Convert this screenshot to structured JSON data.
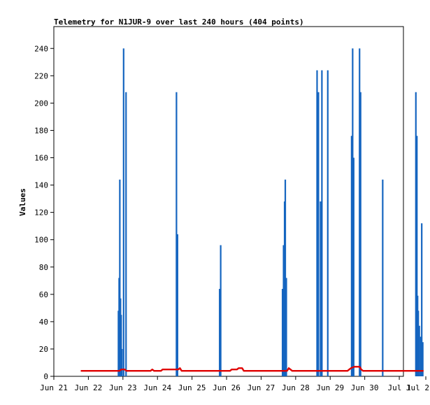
{
  "chart_data": {
    "type": "line",
    "title": "Telemetry for N1JUR-9 over last 240 hours (404 points)",
    "xlabel": "",
    "ylabel": "Values",
    "x_axis": {
      "min_day": 21,
      "max_day": 31.12,
      "ticks": [
        {
          "day": 21,
          "label": "Jun 21"
        },
        {
          "day": 22,
          "label": "Jun 22"
        },
        {
          "day": 23,
          "label": "Jun 23"
        },
        {
          "day": 24,
          "label": "Jun 24"
        },
        {
          "day": 25,
          "label": "Jun 25"
        },
        {
          "day": 26,
          "label": "Jun 26"
        },
        {
          "day": 27,
          "label": "Jun 27"
        },
        {
          "day": 28,
          "label": "Jun 28"
        },
        {
          "day": 29,
          "label": "Jun 29"
        },
        {
          "day": 30,
          "label": "Jun 30"
        },
        {
          "day": 31,
          "label": "Jul 1"
        },
        {
          "day": 32,
          "label": "Jul 2"
        }
      ]
    },
    "ylim": [
      0,
      256
    ],
    "yticks": [
      0,
      20,
      40,
      60,
      80,
      100,
      120,
      140,
      160,
      180,
      200,
      220,
      240
    ],
    "grid": false,
    "legend": "none",
    "series": [
      {
        "color": "#1565c0",
        "style": "spikes",
        "points": [
          [
            22.87,
            48
          ],
          [
            22.89,
            72
          ],
          [
            22.91,
            144
          ],
          [
            22.93,
            57
          ],
          [
            22.95,
            45
          ],
          [
            22.97,
            20
          ],
          [
            23.02,
            240
          ],
          [
            23.09,
            208
          ],
          [
            24.55,
            208
          ],
          [
            24.58,
            104
          ],
          [
            25.8,
            64
          ],
          [
            25.83,
            96
          ],
          [
            27.62,
            64
          ],
          [
            27.65,
            96
          ],
          [
            27.68,
            128
          ],
          [
            27.7,
            144
          ],
          [
            27.73,
            72
          ],
          [
            28.62,
            224
          ],
          [
            28.66,
            208
          ],
          [
            28.72,
            128
          ],
          [
            28.76,
            224
          ],
          [
            28.93,
            224
          ],
          [
            29.62,
            176
          ],
          [
            29.65,
            240
          ],
          [
            29.68,
            160
          ],
          [
            29.85,
            240
          ],
          [
            29.88,
            208
          ],
          [
            30.52,
            144
          ],
          [
            31.48,
            208
          ],
          [
            31.51,
            176
          ],
          [
            31.53,
            59
          ],
          [
            31.55,
            48
          ],
          [
            31.58,
            37
          ],
          [
            31.62,
            29
          ],
          [
            31.65,
            112
          ],
          [
            31.68,
            25
          ]
        ]
      },
      {
        "color": "#e00000",
        "style": "line",
        "points": [
          [
            21.78,
            4
          ],
          [
            22.9,
            4
          ],
          [
            22.95,
            5
          ],
          [
            23.05,
            5
          ],
          [
            23.1,
            4
          ],
          [
            23.8,
            4
          ],
          [
            23.85,
            5
          ],
          [
            23.9,
            4
          ],
          [
            24.1,
            4
          ],
          [
            24.15,
            5
          ],
          [
            24.4,
            5
          ],
          [
            24.45,
            5
          ],
          [
            24.6,
            5
          ],
          [
            24.65,
            6
          ],
          [
            24.7,
            4
          ],
          [
            25.85,
            4
          ],
          [
            25.9,
            4
          ],
          [
            26.1,
            4
          ],
          [
            26.15,
            5
          ],
          [
            26.3,
            5
          ],
          [
            26.35,
            6
          ],
          [
            26.45,
            6
          ],
          [
            26.5,
            4
          ],
          [
            27.75,
            4
          ],
          [
            27.8,
            6
          ],
          [
            27.85,
            5
          ],
          [
            27.9,
            4
          ],
          [
            29.5,
            4
          ],
          [
            29.6,
            6
          ],
          [
            29.7,
            7
          ],
          [
            29.85,
            7
          ],
          [
            29.9,
            5
          ],
          [
            29.95,
            4
          ],
          [
            31.7,
            4
          ]
        ]
      }
    ]
  }
}
